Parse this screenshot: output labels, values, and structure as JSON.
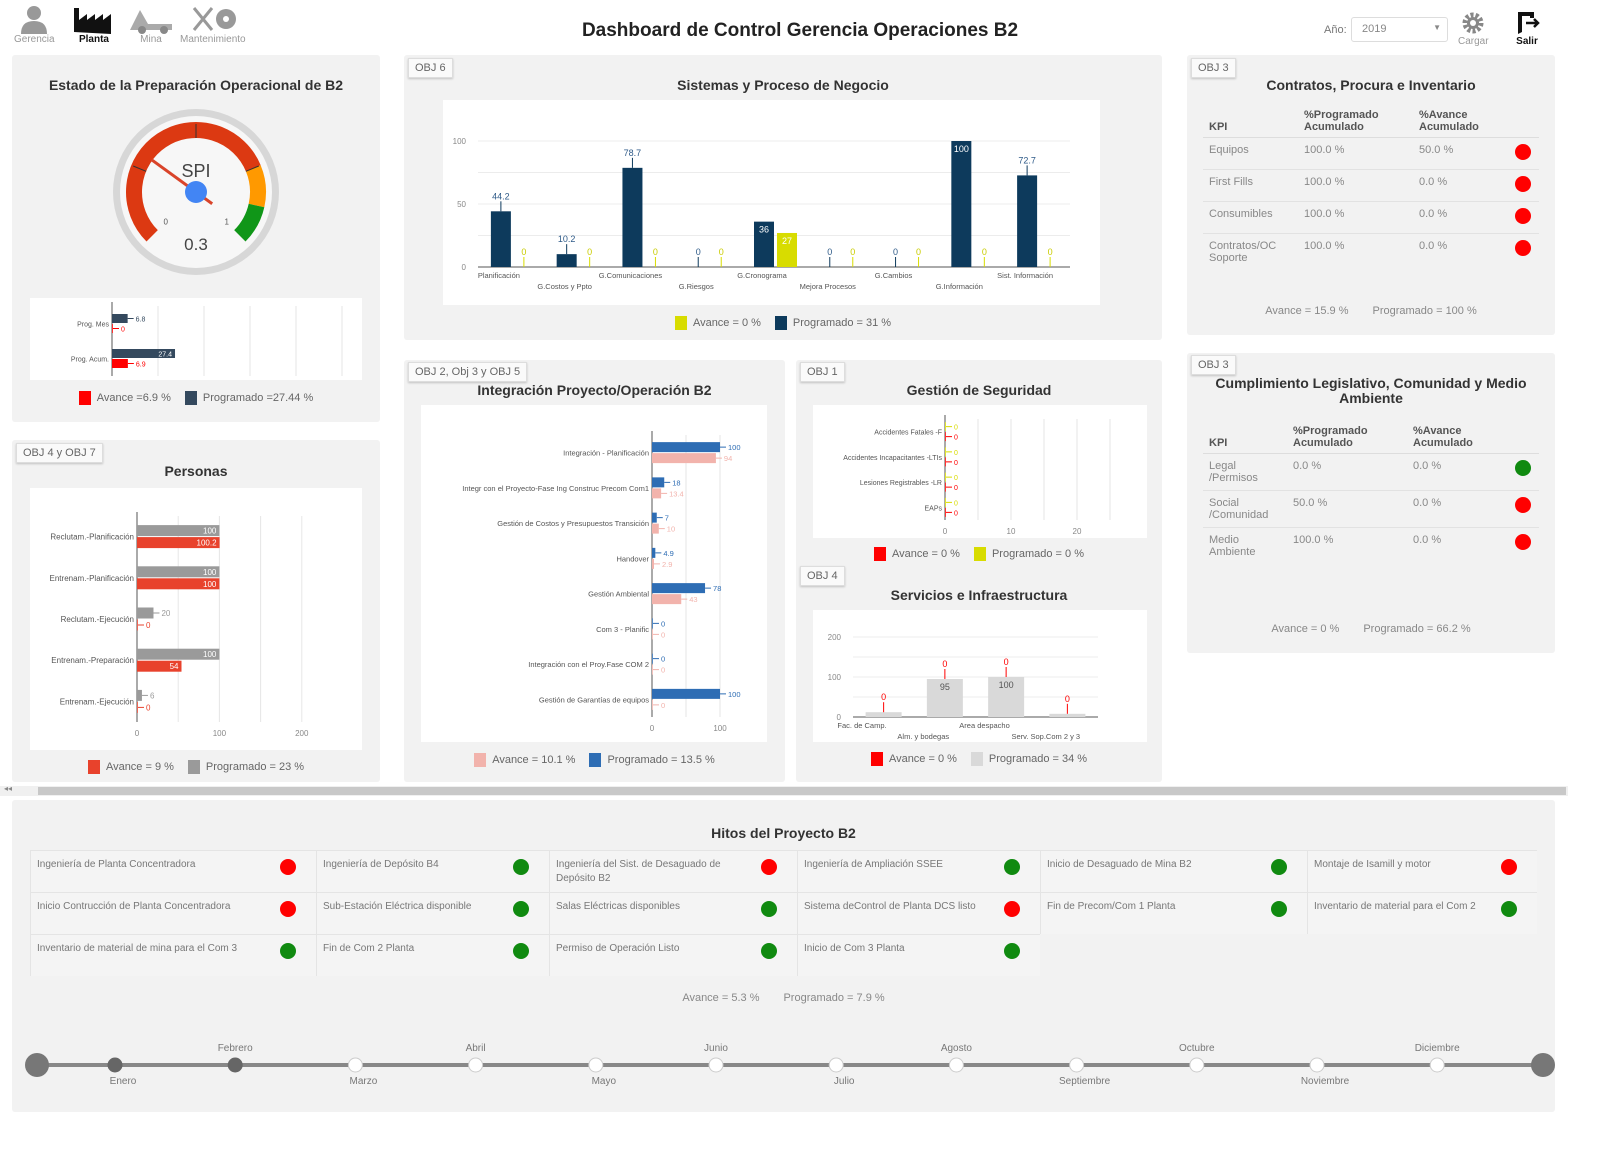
{
  "nav": {
    "items": [
      {
        "label": "Gerencia",
        "icon": "user-icon",
        "active": false
      },
      {
        "label": "Planta",
        "icon": "factory-icon",
        "active": true
      },
      {
        "label": "Mina",
        "icon": "mining-truck-icon",
        "active": false
      },
      {
        "label": "Mantenimiento",
        "icon": "tools-icon",
        "active": false
      }
    ]
  },
  "header": {
    "title": "Dashboard de Control Gerencia Operaciones B2",
    "year_label": "Año:",
    "year_value": "2019",
    "load_label": "Cargar",
    "exit_label": "Salir"
  },
  "colors": {
    "red": "#ff0000",
    "green": "#108a10",
    "dark_navy": "#0d3a5c",
    "yellow": "#d8dc00",
    "blue": "#2e6db4",
    "pink": "#f2b3ac",
    "gray": "#999999",
    "orange_red": "#e8422c"
  },
  "estado": {
    "title": "Estado de la Preparación Operacional de B2",
    "gauge": {
      "label": "SPI",
      "value": 0.3,
      "min": 0,
      "max": 1,
      "min_label": "0",
      "max_label": "1"
    },
    "legend": {
      "avance": "Avance =6.9 %",
      "programado": "Programado =27.44 %"
    }
  },
  "personas": {
    "tag": "OBJ 4 y OBJ 7",
    "title": "Personas",
    "legend": {
      "avance": "Avance = 9 %",
      "programado": "Programado = 23 %"
    }
  },
  "sistemas": {
    "tag": "OBJ 6",
    "title": "Sistemas y Proceso de Negocio",
    "legend": {
      "avance": "Avance = 0 %",
      "programado": "Programado = 31 %"
    }
  },
  "integracion": {
    "tag": "OBJ 2, Obj 3 y OBJ 5",
    "title": "Integración Proyecto/Operación B2",
    "legend": {
      "avance": "Avance = 10.1 %",
      "programado": "Programado = 13.5 %"
    }
  },
  "seguridad": {
    "tag": "OBJ 1",
    "title": "Gestión de Seguridad",
    "legend": {
      "avance": "Avance = 0 %",
      "programado": "Programado = 0 %"
    }
  },
  "servicios": {
    "tag": "OBJ 4",
    "title": "Servicios e Infraestructura",
    "legend": {
      "avance": "Avance = 0 %",
      "programado": "Programado = 34 %"
    }
  },
  "contratos": {
    "tag": "OBJ 3",
    "title": "Contratos, Procura e Inventario",
    "headers": [
      "KPI",
      "%Programado Acumulado",
      "%Avance Acumulado"
    ],
    "rows": [
      {
        "kpi": "Equipos",
        "prog": "100.0 %",
        "avance": "50.0 %",
        "status": "red"
      },
      {
        "kpi": "First Fills",
        "prog": "100.0 %",
        "avance": "0.0 %",
        "status": "red"
      },
      {
        "kpi": "Consumibles",
        "prog": "100.0 %",
        "avance": "0.0 %",
        "status": "red"
      },
      {
        "kpi": "Contratos/OC Soporte",
        "prog": "100.0 %",
        "avance": "0.0 %",
        "status": "red"
      }
    ],
    "summary": {
      "avance": "Avance = 15.9 %",
      "programado": "Programado = 100 %"
    }
  },
  "cumplimiento": {
    "tag": "OBJ 3",
    "title": "Cumplimiento Legislativo, Comunidad y Medio Ambiente",
    "headers": [
      "KPI",
      "%Programado Acumulado",
      "%Avance Acumulado"
    ],
    "rows": [
      {
        "kpi": "Legal /Permisos",
        "prog": "0.0 %",
        "avance": "0.0 %",
        "status": "green"
      },
      {
        "kpi": "Social /Comunidad",
        "prog": "50.0 %",
        "avance": "0.0 %",
        "status": "red"
      },
      {
        "kpi": "Medio Ambiente",
        "prog": "100.0 %",
        "avance": "0.0 %",
        "status": "red"
      }
    ],
    "summary": {
      "avance": "Avance = 0 %",
      "programado": "Programado = 66.2 %"
    }
  },
  "hitos": {
    "title": "Hitos del Proyecto B2",
    "items": [
      {
        "label": "Ingeniería de Planta Concentradora",
        "status": "red"
      },
      {
        "label": "Ingeniería de Depósito B4",
        "status": "green"
      },
      {
        "label": "Ingeniería del Sist. de Desaguado de Depósito B2",
        "status": "red"
      },
      {
        "label": "Ingeniería de Ampliación SSEE",
        "status": "green"
      },
      {
        "label": "Inicio de Desaguado de Mina B2",
        "status": "green"
      },
      {
        "label": "Montaje de Isamill y motor",
        "status": "red"
      },
      {
        "label": "Inicio Contrucción de Planta Concentradora",
        "status": "red"
      },
      {
        "label": "Sub-Estación Eléctrica disponible",
        "status": "green"
      },
      {
        "label": "Salas Eléctricas disponibles",
        "status": "green"
      },
      {
        "label": "Sistema deControl de Planta DCS listo",
        "status": "red"
      },
      {
        "label": "Fin de Precom/Com 1 Planta",
        "status": "green"
      },
      {
        "label": "Inventario de material para el Com 2",
        "status": "green"
      },
      {
        "label": "Inventario de material de mina para el Com 3",
        "status": "green"
      },
      {
        "label": "Fin de Com 2 Planta",
        "status": "green"
      },
      {
        "label": "Permiso de Operación Listo",
        "status": "green"
      },
      {
        "label": "Inicio de Com 3 Planta",
        "status": "green"
      }
    ],
    "summary": {
      "avance": "Avance = 5.3 %",
      "programado": "Programado = 7.9 %"
    }
  },
  "timeline": {
    "months": [
      "Enero",
      "Febrero",
      "Marzo",
      "Abril",
      "Mayo",
      "Junio",
      "Julio",
      "Agosto",
      "Septiembre",
      "Octubre",
      "Noviembre",
      "Diciembre"
    ],
    "completed_months": 2
  },
  "chart_data": [
    {
      "id": "estado-bars",
      "type": "bar",
      "orientation": "horizontal",
      "categories": [
        "Prog. Mes",
        "Prog. Acum."
      ],
      "series": [
        {
          "name": "Programado",
          "values": [
            6.8,
            27.4
          ],
          "labels": [
            "6.8",
            "27.4"
          ],
          "color": "#34495e"
        },
        {
          "name": "Avance",
          "values": [
            0,
            6.9
          ],
          "labels": [
            "0",
            "6.9"
          ],
          "color": "#ff0000"
        }
      ],
      "xlim": [
        0,
        100
      ],
      "grid": true
    },
    {
      "id": "personas-bars",
      "type": "bar",
      "orientation": "horizontal",
      "categories": [
        "Reclutam.-Planificación",
        "Entrenam.-Planificación",
        "Reclutam.-Ejecución",
        "Entrenam.-Preparación",
        "Entrenam.-Ejecución"
      ],
      "series": [
        {
          "name": "Programado",
          "values": [
            100,
            100,
            20,
            100,
            6
          ],
          "labels": [
            "100",
            "100",
            "20",
            "100",
            "6"
          ],
          "color": "#9a9a9a"
        },
        {
          "name": "Avance",
          "values": [
            100.2,
            100,
            0,
            54,
            0
          ],
          "labels": [
            "100.2",
            "100",
            "0",
            "54",
            "0"
          ],
          "color": "#e8422c"
        }
      ],
      "xlim": [
        0,
        250
      ],
      "xticks": [
        "0",
        "100",
        "200"
      ],
      "grid": true
    },
    {
      "id": "sistemas-bars",
      "type": "bar",
      "orientation": "vertical",
      "categories": [
        "Planificación",
        "G.Costos y Ppto",
        "G.Comunicaciones",
        "G.Riesgos",
        "G.Cronograma",
        "Mejora Procesos",
        "G.Cambios",
        "G.Información",
        "Sist. Información"
      ],
      "series": [
        {
          "name": "Programado",
          "values": [
            44.2,
            10.2,
            78.7,
            0,
            36,
            0,
            0,
            100,
            72.7
          ],
          "labels": [
            "44.2",
            "10.2",
            "78.7",
            "0",
            "36",
            "0",
            "0",
            "100",
            "72.7"
          ],
          "color": "#0d3a5c"
        },
        {
          "name": "Avance",
          "values": [
            0,
            0,
            0,
            0,
            27,
            0,
            0,
            0,
            0
          ],
          "labels": [
            "0",
            "0",
            "0",
            "0",
            "27",
            "0",
            "0",
            "0",
            "0"
          ],
          "color": "#d8dc00"
        }
      ],
      "ylim": [
        0,
        100
      ],
      "yticks": [
        "0",
        "50",
        "100"
      ],
      "grid": true
    },
    {
      "id": "integracion-bars",
      "type": "bar",
      "orientation": "horizontal",
      "categories": [
        "Integración - Planificación",
        "Integr con el Proyecto-Fase Ing Construc Precom Com1",
        "Gestión de Costos y Presupuestos Transición",
        "Handover",
        "Gestión Ambiental",
        "Com 3 - Planific",
        "Integración con el Proy.Fase COM 2",
        "Gestión de Garantías de equipos"
      ],
      "series": [
        {
          "name": "Programado",
          "values": [
            100,
            18,
            7,
            4.9,
            78,
            0,
            0,
            100
          ],
          "labels": [
            "100",
            "18",
            "7",
            "4.9",
            "78",
            "0",
            "0",
            "100"
          ],
          "color": "#2e6db4"
        },
        {
          "name": "Avance",
          "values": [
            94,
            13.4,
            10,
            2.9,
            43,
            0,
            0,
            0
          ],
          "labels": [
            "94",
            "13.4",
            "10",
            "2.9",
            "43",
            "0",
            "0",
            "0"
          ],
          "color": "#f2b3ac"
        }
      ],
      "xlim": [
        0,
        100
      ],
      "xticks": [
        "0",
        "100"
      ],
      "grid": true
    },
    {
      "id": "seguridad-bars",
      "type": "bar",
      "orientation": "horizontal",
      "categories": [
        "Accidentes Fatales -F",
        "Accidentes Incapacitantes -LTIs",
        "Lesiones Registrables -LR",
        "EAPs"
      ],
      "series": [
        {
          "name": "Programado",
          "values": [
            0,
            0,
            0,
            0
          ],
          "labels": [
            "0",
            "0",
            "0",
            "0"
          ],
          "color": "#d8dc00"
        },
        {
          "name": "Avance",
          "values": [
            0,
            0,
            0,
            0
          ],
          "labels": [
            "0",
            "0",
            "0",
            "0"
          ],
          "color": "#ff0000"
        }
      ],
      "xlim": [
        0,
        30
      ],
      "xticks": [
        "0",
        "10",
        "20"
      ],
      "grid": true
    },
    {
      "id": "servicios-bars",
      "type": "bar",
      "orientation": "vertical",
      "categories": [
        "Fac. de Camp.",
        "Alm. y bodegas",
        "Area despacho",
        "Serv. Sop.Com 2 y 3"
      ],
      "series": [
        {
          "name": "Programado",
          "values": [
            12,
            95,
            100,
            8
          ],
          "labels": [
            "",
            "95",
            "100",
            ""
          ],
          "color": "#d9d9d9"
        },
        {
          "name": "Avance",
          "values": [
            0,
            0,
            0,
            0
          ],
          "labels": [
            "0",
            "0",
            "0",
            "0"
          ],
          "color": "#ff0000"
        }
      ],
      "ylim": [
        0,
        200
      ],
      "yticks": [
        "0",
        "100",
        "200"
      ],
      "grid": true
    }
  ]
}
